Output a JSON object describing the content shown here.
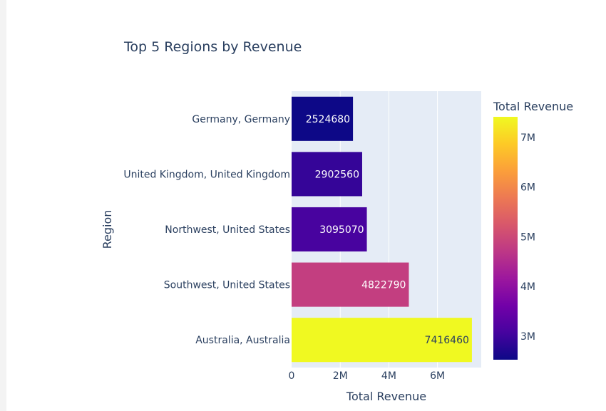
{
  "chart_data": {
    "type": "bar",
    "orientation": "horizontal",
    "title": "Top 5 Regions by Revenue",
    "xlabel": "Total Revenue",
    "ylabel": "Region",
    "categories": [
      "Germany, Germany",
      "United Kingdom, United Kingdom",
      "Northwest, United States",
      "Southwest, United States",
      "Australia, Australia"
    ],
    "values": [
      2524680,
      2902560,
      3095070,
      4822790,
      7416460
    ],
    "data_labels": [
      "2524680",
      "2902560",
      "3095070",
      "4822790",
      "7416460"
    ],
    "xlim": [
      0,
      7800000
    ],
    "x_ticks": [
      0,
      2000000,
      4000000,
      6000000
    ],
    "x_tick_labels": [
      "0",
      "2M",
      "4M",
      "6M"
    ],
    "grid": true,
    "plot_background": "#e5ecf6",
    "colorscale": "Plasma",
    "colorscale_stops": [
      "#0d0887",
      "#46039f",
      "#7201a8",
      "#9c179e",
      "#bd3786",
      "#d8576b",
      "#ed7953",
      "#fb9f3a",
      "#fdca26",
      "#f0f921"
    ],
    "colorbar": {
      "title": "Total Revenue",
      "range": [
        2524680,
        7416460
      ],
      "ticks": [
        3000000,
        4000000,
        5000000,
        6000000,
        7000000
      ],
      "tick_labels": [
        "3M",
        "4M",
        "5M",
        "6M",
        "7M"
      ]
    }
  }
}
